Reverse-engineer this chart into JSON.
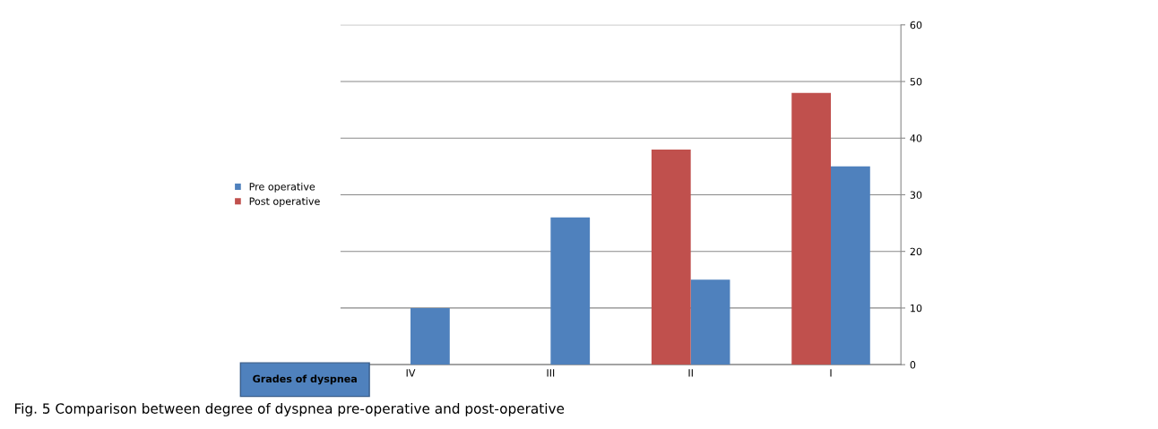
{
  "chart_data": {
    "type": "bar",
    "xlabel": "Grades of dyspnea",
    "categories": [
      "IV",
      "III",
      "II",
      "I"
    ],
    "series": [
      {
        "name": "Pre operative",
        "color": "#4f81bd",
        "values": [
          10,
          26,
          15,
          35
        ]
      },
      {
        "name": "Post operative",
        "color": "#c0504d",
        "values": [
          0,
          0,
          38,
          48
        ]
      }
    ],
    "ylim": [
      0,
      60
    ],
    "yticks": [
      0,
      10,
      20,
      30,
      40,
      50,
      60
    ],
    "grid": "y",
    "legend": "left",
    "annotations": [
      "Fig. 5 Comparison between degree of dyspnea pre-operative and post-operative"
    ]
  }
}
